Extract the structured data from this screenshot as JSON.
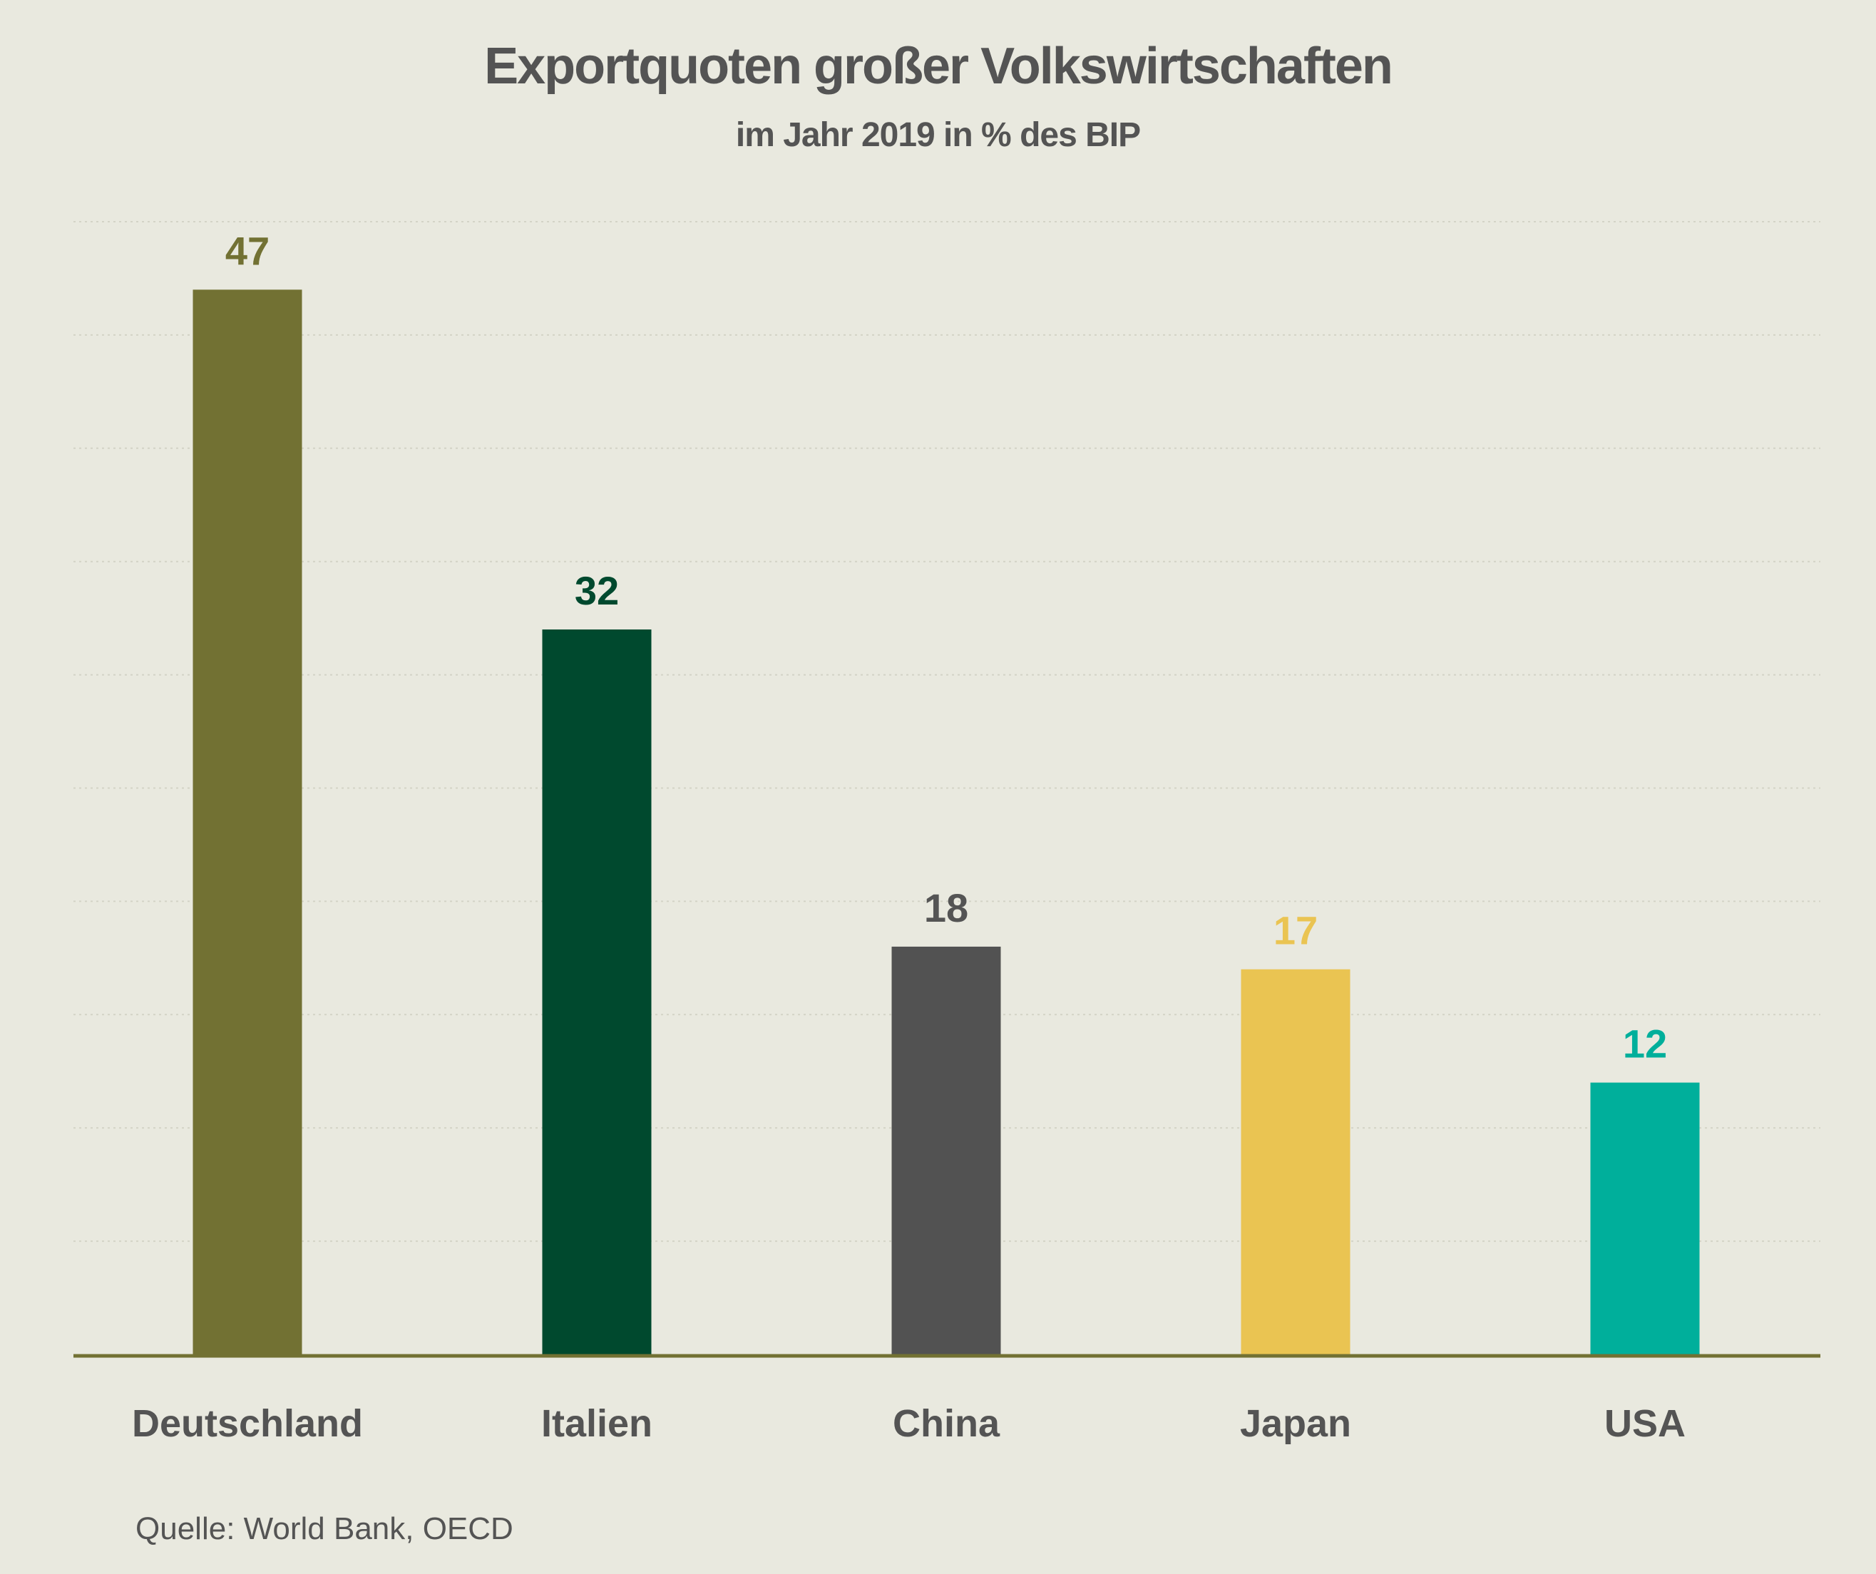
{
  "chart_data": {
    "type": "bar",
    "title": "Exportquoten großer Volkswirtschaften",
    "subtitle": "im Jahr 2019 in % des BIP",
    "categories": [
      "Deutschland",
      "Italien",
      "China",
      "Japan",
      "USA"
    ],
    "values": [
      47,
      32,
      18,
      17,
      12
    ],
    "colors": [
      "#727133",
      "#00492e",
      "#525252",
      "#eac452",
      "#00af9b"
    ],
    "ylim": [
      0,
      50
    ],
    "gridlines": true,
    "axis_color": "#727133",
    "source": "Quelle: World Bank, OECD"
  }
}
